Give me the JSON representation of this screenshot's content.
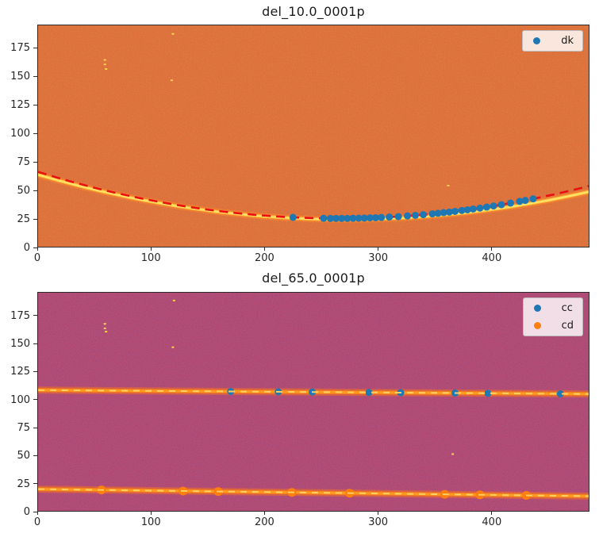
{
  "figure": {
    "background": "#ffffff",
    "text_color": "#262626"
  },
  "chart_data": [
    {
      "type": "scatter",
      "title": "del_10.0_0001p",
      "xlabel": "",
      "ylabel": "",
      "xlim": [
        0,
        486
      ],
      "ylim": [
        0,
        195.5
      ],
      "xticks": [
        0,
        100,
        200,
        300,
        400
      ],
      "yticks": [
        0,
        25,
        50,
        75,
        100,
        125,
        150,
        175
      ],
      "grid": false,
      "background": {
        "base": "#e0602a",
        "noise_dark": "#8e2e0f",
        "noise_light": "#ffc35c"
      },
      "ridge": {
        "shape": "quadratic",
        "vertex": [
          272,
          24
        ],
        "coeff": 0.000535,
        "core_color": "#ffe36a",
        "mid_color": "#ffc33b",
        "glow_color": "#ff8c28"
      },
      "fit_line": {
        "shape": "quadratic",
        "vertex": [
          265,
          25
        ],
        "coeff": 0.000585,
        "style": "dashed",
        "color": "#e81010"
      },
      "series": [
        {
          "name": "dk",
          "color": "#1f77b4",
          "marker": "circle",
          "size": 9,
          "points": [
            [
              225,
              25.9
            ],
            [
              252,
              25.1
            ],
            [
              258,
              25.0
            ],
            [
              263,
              25.0
            ],
            [
              268,
              25.0
            ],
            [
              273,
              25.0
            ],
            [
              278,
              25.1
            ],
            [
              283,
              25.2
            ],
            [
              288,
              25.3
            ],
            [
              293,
              25.5
            ],
            [
              298,
              25.6
            ],
            [
              303,
              25.8
            ],
            [
              310,
              26.2
            ],
            [
              318,
              26.6
            ],
            [
              326,
              27.2
            ],
            [
              333,
              27.7
            ],
            [
              340,
              28.3
            ],
            [
              348,
              29.0
            ],
            [
              353,
              29.5
            ],
            [
              358,
              30.1
            ],
            [
              363,
              30.6
            ],
            [
              368,
              31.2
            ],
            [
              374,
              32.0
            ],
            [
              379,
              32.6
            ],
            [
              384,
              33.3
            ],
            [
              390,
              34.1
            ],
            [
              396,
              35.0
            ],
            [
              402,
              36.0
            ],
            [
              409,
              37.1
            ],
            [
              417,
              38.5
            ],
            [
              425,
              40.0
            ],
            [
              430,
              40.9
            ],
            [
              437,
              42.3
            ]
          ]
        }
      ],
      "speckles": {
        "color": "#ffd34d",
        "points": [
          [
            59,
            165
          ],
          [
            59,
            161
          ],
          [
            60,
            157
          ],
          [
            119,
            188
          ],
          [
            118,
            147
          ],
          [
            362,
            54
          ]
        ]
      },
      "legend": {
        "location": "upper right",
        "entries": [
          {
            "label": "dk",
            "color": "#1f77b4"
          }
        ]
      }
    },
    {
      "type": "scatter",
      "title": "del_65.0_0001p",
      "xlabel": "",
      "ylabel": "",
      "xlim": [
        0,
        486
      ],
      "ylim": [
        0,
        196
      ],
      "xticks": [
        0,
        100,
        200,
        300,
        400
      ],
      "yticks": [
        0,
        25,
        50,
        75,
        100,
        125,
        150,
        175
      ],
      "grid": false,
      "background": {
        "base": "#b23355",
        "noise_dark": "#402a86",
        "noise_light": "#e0506a"
      },
      "bands": [
        {
          "start": [
            0,
            108.5
          ],
          "end": [
            486,
            105.0
          ],
          "core_color": "#ff9a1e",
          "mid_color": "#f47b1f",
          "glow_color": "#ff7814",
          "dash_color": "#ffd065"
        },
        {
          "start": [
            0,
            19.5
          ],
          "end": [
            486,
            13.2
          ],
          "core_color": "#ff9a1e",
          "mid_color": "#f47b1f",
          "glow_color": "#ff7814",
          "dash_color": "#ffd065"
        }
      ],
      "series": [
        {
          "name": "cc",
          "color": "#1f77b4",
          "marker": "circle",
          "size": 9,
          "points": [
            [
              170,
              107.3
            ],
            [
              212,
              107.0
            ],
            [
              242,
              106.8
            ],
            [
              292,
              106.4
            ],
            [
              320,
              106.2
            ],
            [
              368,
              105.9
            ],
            [
              397,
              105.6
            ],
            [
              461,
              105.2
            ]
          ]
        },
        {
          "name": "cd",
          "color": "#ff7f0e",
          "marker": "circle",
          "size": 11,
          "points": [
            [
              56,
              18.8
            ],
            [
              128,
              17.8
            ],
            [
              159,
              17.4
            ],
            [
              224,
              16.6
            ],
            [
              275,
              15.9
            ],
            [
              359,
              14.9
            ],
            [
              390,
              14.4
            ],
            [
              431,
              13.9
            ]
          ]
        }
      ],
      "speckles": {
        "color": "#ffd34d",
        "points": [
          [
            59,
            168
          ],
          [
            59,
            164
          ],
          [
            60,
            161
          ],
          [
            119,
            147
          ],
          [
            366,
            51
          ],
          [
            120,
            189
          ]
        ]
      },
      "legend": {
        "location": "upper right",
        "entries": [
          {
            "label": "cc",
            "color": "#1f77b4"
          },
          {
            "label": "cd",
            "color": "#ff7f0e"
          }
        ]
      }
    }
  ]
}
